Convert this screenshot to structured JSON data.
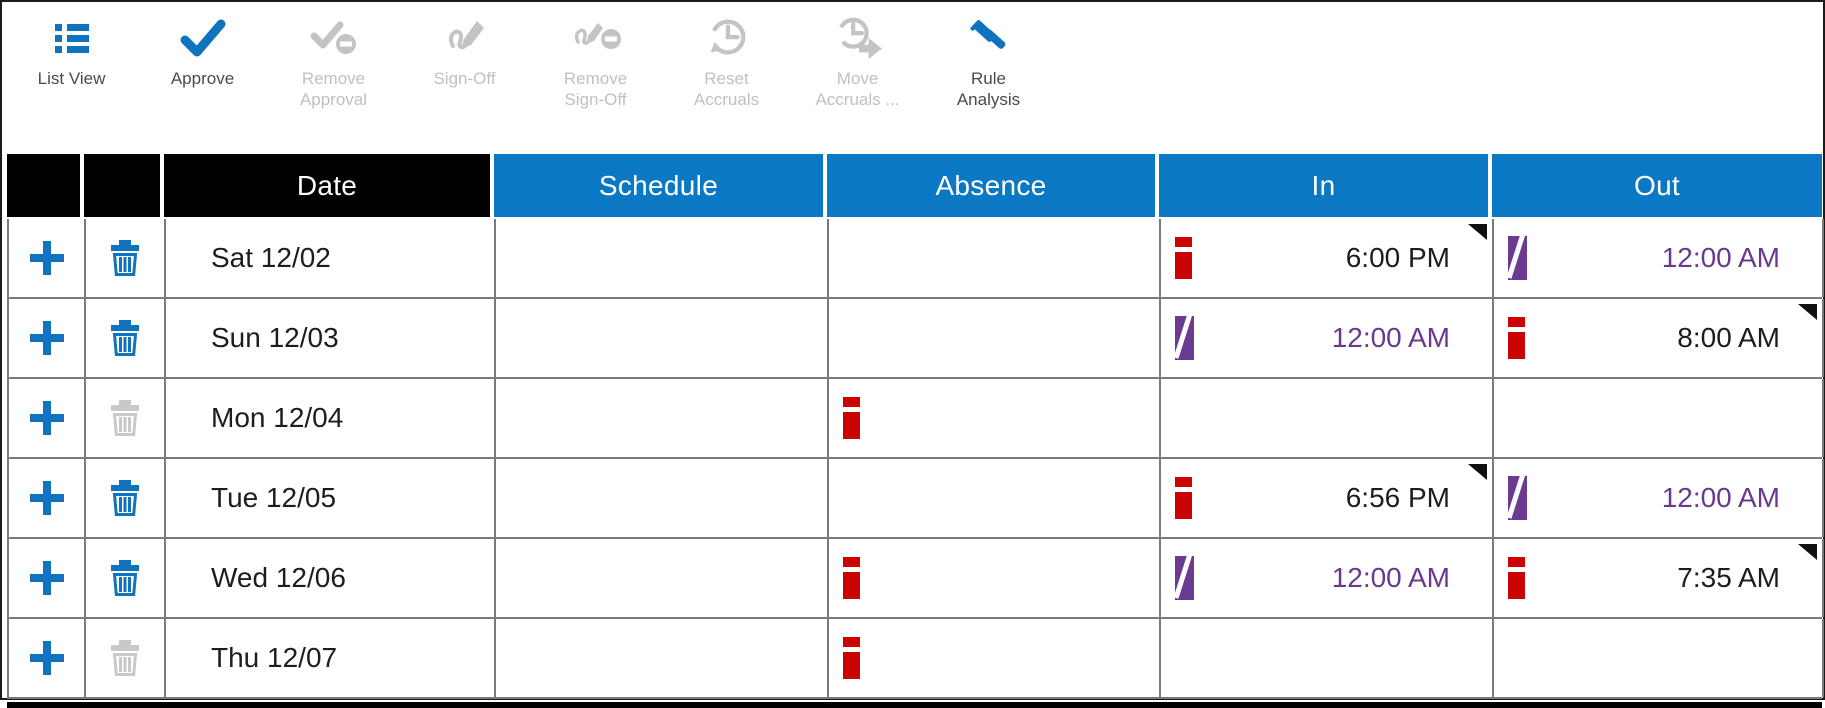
{
  "colors": {
    "header_blue": "#0b78c4",
    "icon_blue": "#1073bd",
    "exception_red": "#cb0202",
    "system_purple_icon": "#6b3a91",
    "system_purple_text": "#69398e",
    "disabled_gray": "#c4c4c4",
    "grid_gray": "#7a7a7a",
    "header_black": "#000000"
  },
  "toolbar": {
    "items": [
      {
        "label": "List View",
        "icon": "list-view-icon",
        "enabled": true
      },
      {
        "label": "Approve",
        "icon": "approve-check-icon",
        "enabled": true
      },
      {
        "label": "Remove\nApproval",
        "icon": "remove-approval-icon",
        "enabled": false
      },
      {
        "label": "Sign-Off",
        "icon": "sign-off-icon",
        "enabled": false
      },
      {
        "label": "Remove\nSign-Off",
        "icon": "remove-sign-off-icon",
        "enabled": false
      },
      {
        "label": "Reset\nAccruals",
        "icon": "reset-accruals-icon",
        "enabled": false
      },
      {
        "label": "Move\nAccruals ...",
        "icon": "move-accruals-icon",
        "enabled": false
      },
      {
        "label": "Rule\nAnalysis",
        "icon": "rule-analysis-icon",
        "enabled": true
      }
    ]
  },
  "table": {
    "headers": [
      {
        "label": "",
        "style": "black"
      },
      {
        "label": "",
        "style": "black"
      },
      {
        "label": "Date",
        "style": "black"
      },
      {
        "label": "Schedule",
        "style": "blue"
      },
      {
        "label": "Absence",
        "style": "blue"
      },
      {
        "label": "In",
        "style": "blue"
      },
      {
        "label": "Out",
        "style": "blue"
      }
    ],
    "rows": [
      {
        "date": "Sat 12/02",
        "can_add": true,
        "can_delete": true,
        "schedule": "",
        "absence_exception": false,
        "in": {
          "time": "6:00 PM",
          "indicator": "exception",
          "comment_corner": true
        },
        "out": {
          "time": "12:00 AM",
          "indicator": "system",
          "comment_corner": false
        }
      },
      {
        "date": "Sun 12/03",
        "can_add": true,
        "can_delete": true,
        "schedule": "",
        "absence_exception": false,
        "in": {
          "time": "12:00 AM",
          "indicator": "system",
          "comment_corner": false
        },
        "out": {
          "time": "8:00 AM",
          "indicator": "exception",
          "comment_corner": true
        }
      },
      {
        "date": "Mon 12/04",
        "can_add": true,
        "can_delete": false,
        "schedule": "",
        "absence_exception": true,
        "in": null,
        "out": null
      },
      {
        "date": "Tue 12/05",
        "can_add": true,
        "can_delete": true,
        "schedule": "",
        "absence_exception": false,
        "in": {
          "time": "6:56 PM",
          "indicator": "exception",
          "comment_corner": true
        },
        "out": {
          "time": "12:00 AM",
          "indicator": "system",
          "comment_corner": false
        }
      },
      {
        "date": "Wed 12/06",
        "can_add": true,
        "can_delete": true,
        "schedule": "",
        "absence_exception": true,
        "in": {
          "time": "12:00 AM",
          "indicator": "system",
          "comment_corner": false
        },
        "out": {
          "time": "7:35 AM",
          "indicator": "exception",
          "comment_corner": true
        }
      },
      {
        "date": "Thu 12/07",
        "can_add": true,
        "can_delete": false,
        "schedule": "",
        "absence_exception": true,
        "in": null,
        "out": null
      }
    ]
  }
}
